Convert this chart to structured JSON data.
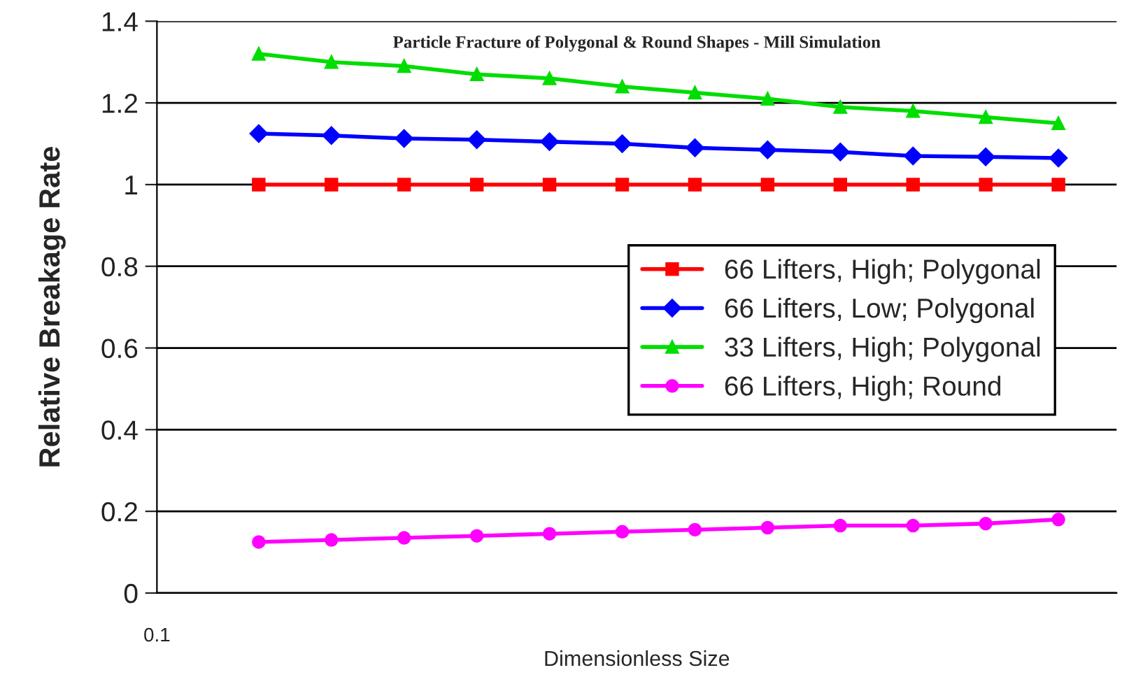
{
  "chart_data": {
    "type": "line",
    "title": "Particle Fracture of Polygonal & Round Shapes - Mill Simulation",
    "xlabel": "Dimensionless Size",
    "ylabel": "Relative Breakage Rate",
    "annotations": [
      "0.1"
    ],
    "categories": [
      null,
      null,
      null,
      null,
      null,
      null,
      null,
      null,
      null,
      null,
      null,
      null
    ],
    "series": [
      {
        "name": "66 Lifters, High; Polygonal",
        "color": "#ff0000",
        "marker": "square",
        "values": [
          1,
          1,
          1,
          1,
          1,
          1,
          1,
          1,
          1,
          1,
          1,
          1
        ]
      },
      {
        "name": "66 Lifters, Low; Polygonal",
        "color": "#0000ff",
        "marker": "diamond",
        "values": [
          1.125,
          1.12,
          1.113,
          1.11,
          1.105,
          1.1,
          1.09,
          1.085,
          1.08,
          1.07,
          1.068,
          1.065
        ]
      },
      {
        "name": "33 Lifters, High; Polygonal",
        "color": "#00dd00",
        "marker": "triangle",
        "values": [
          1.32,
          1.3,
          1.29,
          1.27,
          1.26,
          1.24,
          1.225,
          1.21,
          1.19,
          1.18,
          1.165,
          1.15
        ]
      },
      {
        "name": "66 Lifters, High; Round",
        "color": "#ff00ff",
        "marker": "circle",
        "values": [
          0.125,
          0.13,
          0.135,
          0.14,
          0.145,
          0.15,
          0.155,
          0.16,
          0.165,
          0.165,
          0.17,
          0.18
        ]
      }
    ],
    "ylim": [
      0,
      1.4
    ],
    "yticks": [
      0,
      0.2,
      0.4,
      0.6,
      0.8,
      1,
      1.2,
      1.4
    ],
    "grid": "y",
    "legend": "right",
    "line_style": "solid"
  }
}
